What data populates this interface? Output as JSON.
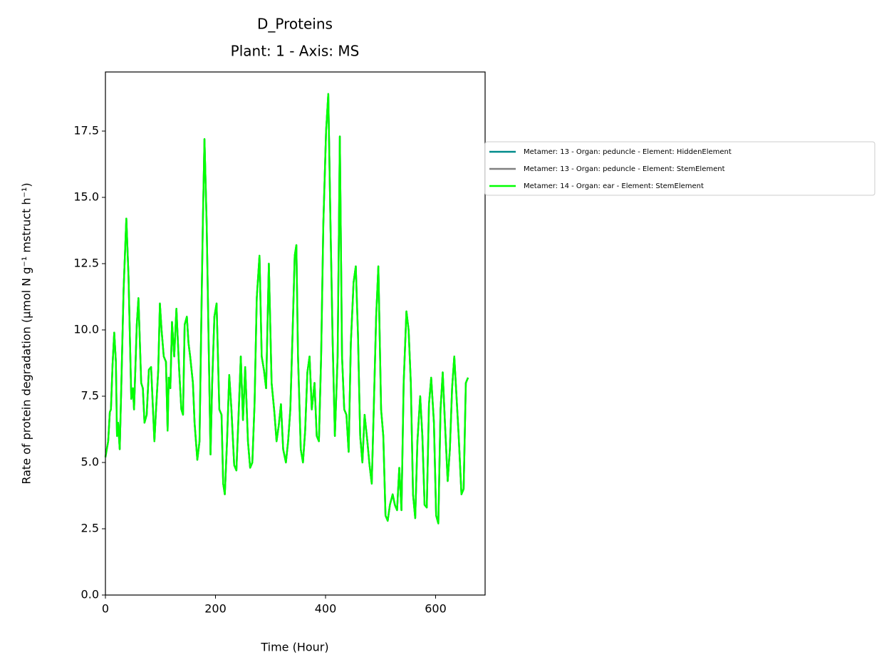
{
  "chart_data": {
    "type": "line",
    "title": "D_Proteins",
    "subtitle": "Plant: 1 - Axis: MS",
    "x_label": "Time (Hour)",
    "y_label": "Rate of protein degradation (µmol N g⁻¹ mstruct h⁻¹)",
    "legend": "upper left outside",
    "grid": false,
    "xlim": [
      0,
      690
    ],
    "xticks": [
      0,
      200,
      400,
      600
    ],
    "ylim": [
      0,
      19.73
    ],
    "yticks": [
      {
        "value": 0,
        "label": "0.0"
      },
      {
        "value": 2.5,
        "label": "2.5"
      },
      {
        "value": 5,
        "label": "5.0"
      },
      {
        "value": 7.5,
        "label": "7.5"
      },
      {
        "value": 10,
        "label": "10.0"
      },
      {
        "value": 12.5,
        "label": "12.5"
      },
      {
        "value": 15,
        "label": "15.0"
      },
      {
        "value": 17.5,
        "label": "17.5"
      }
    ],
    "x": [
      0,
      5,
      8,
      10,
      13,
      16,
      19,
      21,
      23,
      26,
      29,
      33,
      38,
      42,
      47,
      50,
      52,
      57,
      60,
      65,
      68,
      71,
      75,
      79,
      83,
      89,
      92,
      96,
      99,
      102,
      106,
      110,
      113,
      115,
      118,
      121,
      125,
      129,
      134,
      138,
      141,
      144,
      148,
      151,
      154,
      159,
      162,
      167,
      171,
      174,
      177,
      180,
      184,
      188,
      191,
      194,
      198,
      202,
      207,
      211,
      214,
      217,
      221,
      225,
      229,
      234,
      238,
      242,
      246,
      250,
      254,
      259,
      263,
      267,
      271,
      275,
      280,
      284,
      288,
      292,
      297,
      302,
      307,
      311,
      315,
      319,
      323,
      328,
      332,
      336,
      340,
      344,
      347,
      350,
      355,
      359,
      363,
      367,
      371,
      375,
      380,
      384,
      388,
      392,
      396,
      401,
      405,
      409,
      413,
      417,
      422,
      426,
      430,
      434,
      438,
      442,
      446,
      451,
      455,
      459,
      463,
      467,
      471,
      476,
      480,
      484,
      488,
      492,
      496,
      501,
      505,
      509,
      513,
      517,
      522,
      526,
      530,
      534,
      538,
      542,
      547,
      551,
      555,
      559,
      563,
      567,
      572,
      576,
      580,
      584,
      588,
      592,
      597,
      601,
      605,
      609,
      613,
      617,
      622,
      626,
      630,
      634,
      638,
      642,
      647,
      651,
      655,
      659
    ],
    "series": [
      {
        "name": "Metamer: 13 - Organ: peduncle - Element: HiddenElement",
        "color": "#008b8b",
        "values": [
          5.2,
          5.8,
          6.9,
          7.0,
          8.7,
          9.9,
          8.8,
          6.0,
          6.5,
          5.5,
          8.0,
          11.5,
          14.2,
          12.0,
          7.4,
          7.8,
          7.0,
          10.2,
          11.2,
          8.0,
          7.8,
          6.5,
          6.8,
          8.5,
          8.6,
          5.8,
          7.0,
          8.5,
          11.0,
          10.0,
          9.0,
          8.8,
          6.2,
          8.2,
          7.8,
          10.3,
          9.0,
          10.8,
          8.5,
          7.0,
          6.8,
          10.2,
          10.5,
          9.5,
          9.0,
          8.0,
          6.5,
          5.1,
          5.8,
          10.0,
          14.0,
          17.2,
          14.0,
          9.0,
          5.3,
          8.0,
          10.5,
          11.0,
          7.0,
          6.8,
          4.2,
          3.8,
          5.8,
          8.3,
          7.0,
          4.9,
          4.7,
          6.8,
          9.0,
          6.6,
          8.6,
          5.8,
          4.8,
          5.0,
          7.2,
          11.2,
          12.8,
          9.0,
          8.5,
          7.8,
          12.5,
          8.0,
          6.9,
          5.8,
          6.4,
          7.2,
          5.5,
          5.0,
          5.8,
          7.0,
          9.8,
          12.8,
          13.2,
          9.0,
          5.5,
          5.0,
          6.2,
          8.4,
          9.0,
          7.0,
          8.0,
          6.0,
          5.8,
          9.0,
          14.0,
          17.5,
          18.9,
          14.0,
          9.5,
          6.0,
          9.0,
          17.3,
          9.0,
          7.0,
          6.8,
          5.4,
          9.5,
          11.8,
          12.4,
          9.8,
          6.0,
          5.0,
          6.8,
          5.8,
          4.9,
          4.2,
          7.3,
          10.5,
          12.4,
          7.0,
          6.0,
          3.0,
          2.8,
          3.4,
          3.8,
          3.4,
          3.2,
          4.8,
          3.2,
          8.0,
          10.7,
          10.0,
          8.0,
          3.8,
          2.9,
          5.8,
          7.5,
          6.0,
          3.4,
          3.3,
          7.2,
          8.2,
          6.5,
          3.0,
          2.7,
          7.0,
          8.4,
          6.5,
          4.3,
          5.5,
          7.8,
          9.0,
          7.5,
          6.0,
          3.8,
          4.0,
          8.0,
          8.2
        ]
      },
      {
        "name": "Metamer: 13 - Organ: peduncle - Element: StemElement",
        "color": "#808080",
        "values": [
          5.2,
          5.8,
          6.9,
          7.0,
          8.7,
          9.9,
          8.8,
          6.0,
          6.5,
          5.5,
          8.0,
          11.5,
          14.2,
          12.0,
          7.4,
          7.8,
          7.0,
          10.2,
          11.2,
          8.0,
          7.8,
          6.5,
          6.8,
          8.5,
          8.6,
          5.8,
          7.0,
          8.5,
          11.0,
          10.0,
          9.0,
          8.8,
          6.2,
          8.2,
          7.8,
          10.3,
          9.0,
          10.8,
          8.5,
          7.0,
          6.8,
          10.2,
          10.5,
          9.5,
          9.0,
          8.0,
          6.5,
          5.1,
          5.8,
          10.0,
          14.0,
          17.2,
          14.0,
          9.0,
          5.3,
          8.0,
          10.5,
          11.0,
          7.0,
          6.8,
          4.2,
          3.8,
          5.8,
          8.3,
          7.0,
          4.9,
          4.7,
          6.8,
          9.0,
          6.6,
          8.6,
          5.8,
          4.8,
          5.0,
          7.2,
          11.2,
          12.8,
          9.0,
          8.5,
          7.8,
          12.5,
          8.0,
          6.9,
          5.8,
          6.4,
          7.2,
          5.5,
          5.0,
          5.8,
          7.0,
          9.8,
          12.8,
          13.2,
          9.0,
          5.5,
          5.0,
          6.2,
          8.4,
          9.0,
          7.0,
          8.0,
          6.0,
          5.8,
          9.0,
          14.0,
          17.5,
          18.9,
          14.0,
          9.5,
          6.0,
          9.0,
          17.3,
          9.0,
          7.0,
          6.8,
          5.4,
          9.5,
          11.8,
          12.4,
          9.8,
          6.0,
          5.0,
          6.8,
          5.8,
          4.9,
          4.2,
          7.3,
          10.5,
          12.4,
          7.0,
          6.0,
          3.0,
          2.8,
          3.4,
          3.8,
          3.4,
          3.2,
          4.8,
          3.2,
          8.0,
          10.7,
          10.0,
          8.0,
          3.8,
          2.9,
          5.8,
          7.5,
          6.0,
          3.4,
          3.3,
          7.2,
          8.2,
          6.5,
          3.0,
          2.7,
          7.0,
          8.4,
          6.5,
          4.3,
          5.5,
          7.8,
          9.0,
          7.5,
          6.0,
          3.8,
          4.0,
          8.0,
          8.2
        ]
      },
      {
        "name": "Metamer: 14 - Organ: ear - Element: StemElement",
        "color": "#00ff00",
        "values": [
          5.2,
          5.8,
          6.9,
          7.0,
          8.7,
          9.9,
          8.8,
          6.0,
          6.5,
          5.5,
          8.0,
          11.5,
          14.2,
          12.0,
          7.4,
          7.8,
          7.0,
          10.2,
          11.2,
          8.0,
          7.8,
          6.5,
          6.8,
          8.5,
          8.6,
          5.8,
          7.0,
          8.5,
          11.0,
          10.0,
          9.0,
          8.8,
          6.2,
          8.2,
          7.8,
          10.3,
          9.0,
          10.8,
          8.5,
          7.0,
          6.8,
          10.2,
          10.5,
          9.5,
          9.0,
          8.0,
          6.5,
          5.1,
          5.8,
          10.0,
          14.0,
          17.2,
          14.0,
          9.0,
          5.3,
          8.0,
          10.5,
          11.0,
          7.0,
          6.8,
          4.2,
          3.8,
          5.8,
          8.3,
          7.0,
          4.9,
          4.7,
          6.8,
          9.0,
          6.6,
          8.6,
          5.8,
          4.8,
          5.0,
          7.2,
          11.2,
          12.8,
          9.0,
          8.5,
          7.8,
          12.5,
          8.0,
          6.9,
          5.8,
          6.4,
          7.2,
          5.5,
          5.0,
          5.8,
          7.0,
          9.8,
          12.8,
          13.2,
          9.0,
          5.5,
          5.0,
          6.2,
          8.4,
          9.0,
          7.0,
          8.0,
          6.0,
          5.8,
          9.0,
          14.0,
          17.5,
          18.9,
          14.0,
          9.5,
          6.0,
          9.0,
          17.3,
          9.0,
          7.0,
          6.8,
          5.4,
          9.5,
          11.8,
          12.4,
          9.8,
          6.0,
          5.0,
          6.8,
          5.8,
          4.9,
          4.2,
          7.3,
          10.5,
          12.4,
          7.0,
          6.0,
          3.0,
          2.8,
          3.4,
          3.8,
          3.4,
          3.2,
          4.8,
          3.2,
          8.0,
          10.7,
          10.0,
          8.0,
          3.8,
          2.9,
          5.8,
          7.5,
          6.0,
          3.4,
          3.3,
          7.2,
          8.2,
          6.5,
          3.0,
          2.7,
          7.0,
          8.4,
          6.5,
          4.3,
          5.5,
          7.8,
          9.0,
          7.5,
          6.0,
          3.8,
          4.0,
          8.0,
          8.2
        ]
      }
    ]
  }
}
